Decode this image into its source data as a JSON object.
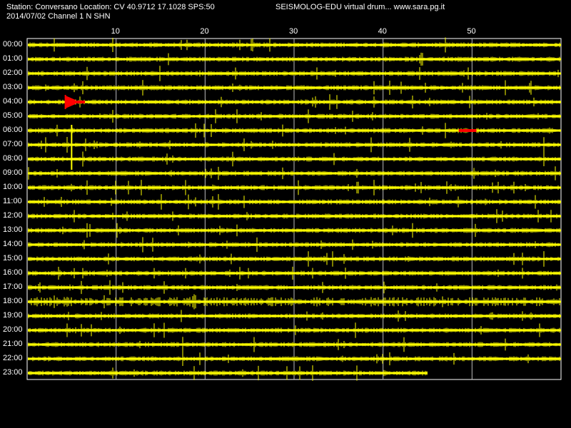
{
  "header": {
    "station_line": "Station: Conversano Location: CV 40.9712 17.1028 SPS:50",
    "brand_line": "SEISMOLOG-EDU virtual drum... www.sara.pg.it",
    "date_channel": "2014/07/02  Channel 1 N SHN"
  },
  "minute_ticks": [
    "10",
    "20",
    "30",
    "40",
    "50"
  ],
  "hours": [
    "00:00",
    "01:00",
    "02:00",
    "03:00",
    "04:00",
    "05:00",
    "06:00",
    "07:00",
    "08:00",
    "09:00",
    "10:00",
    "11:00",
    "12:00",
    "13:00",
    "14:00",
    "15:00",
    "16:00",
    "17:00",
    "18:00",
    "19:00",
    "20:00",
    "21:00",
    "22:00",
    "23:00"
  ],
  "colors": {
    "background": "#000000",
    "trace": "#ffff00",
    "event": "#ff0000",
    "grid": "#ffffff",
    "text": "#ffffff"
  },
  "drum": {
    "minutes_per_line": 60,
    "last_line_end_minute": 45,
    "events": [
      {
        "hour": "04:00",
        "start_minute": 4.3,
        "end_minute": 6.5
      },
      {
        "hour": "06:00",
        "start_minute": 48.5,
        "end_minute": 50.5
      }
    ]
  }
}
